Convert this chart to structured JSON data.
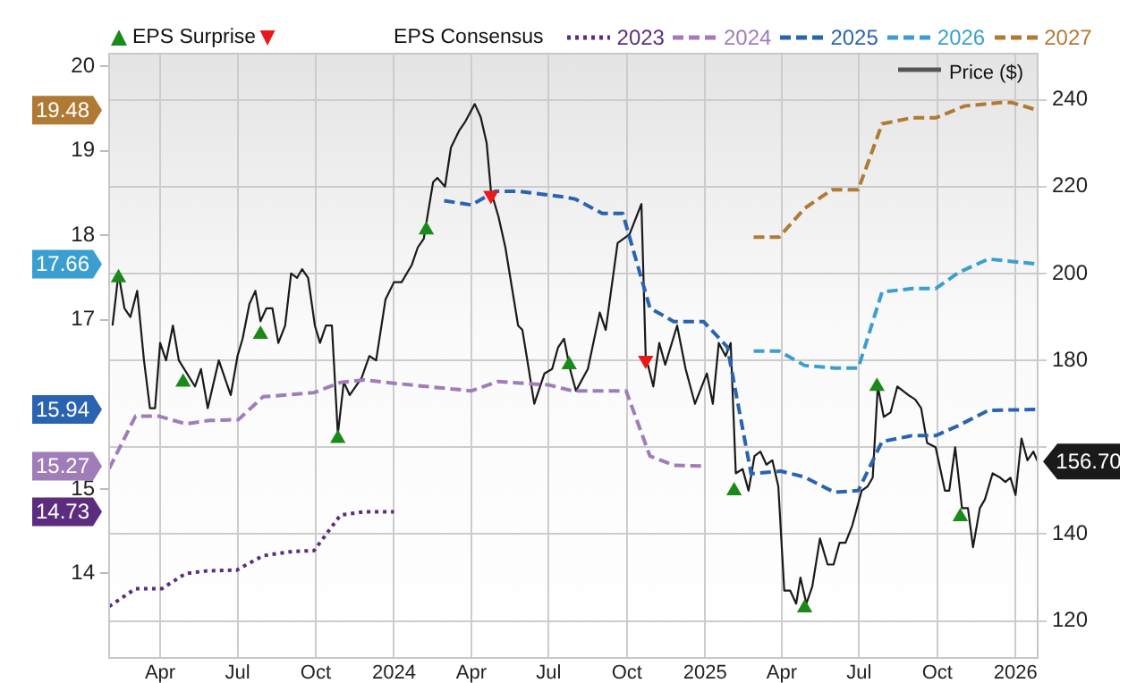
{
  "chart_data": {
    "type": "line",
    "legend": "top",
    "legend_title": "EPS Consensus",
    "grid": true,
    "xlim": [
      "2023-01-31",
      "2026-01-27"
    ],
    "xticks": [
      {
        "value": "2023-04-01",
        "label": "Apr"
      },
      {
        "value": "2023-07-01",
        "label": "Jul"
      },
      {
        "value": "2023-10-01",
        "label": "Oct"
      },
      {
        "value": "2024-01-01",
        "label": "2024"
      },
      {
        "value": "2024-04-01",
        "label": "Apr"
      },
      {
        "value": "2024-07-01",
        "label": "Jul"
      },
      {
        "value": "2024-10-01",
        "label": "Oct"
      },
      {
        "value": "2025-01-01",
        "label": "2025"
      },
      {
        "value": "2025-04-01",
        "label": "Apr"
      },
      {
        "value": "2025-07-01",
        "label": "Jul"
      },
      {
        "value": "2025-10-01",
        "label": "Oct"
      },
      {
        "value": "2026-01-01",
        "label": "2026"
      }
    ],
    "ylim": [
      13.0,
      20.15
    ],
    "yticks": [
      14,
      15,
      17,
      18,
      19,
      20
    ],
    "y2lim": [
      111.5,
      250.6
    ],
    "y2ticks": [
      120,
      140,
      {
        "value": 160,
        "label": null
      },
      180,
      200,
      220,
      240
    ],
    "annotations": [
      "14.73",
      "15.27",
      "15.94",
      "17.66",
      "19.48"
    ],
    "series": [
      {
        "name": "2023",
        "color": "#5c2d7e",
        "line_style": "dotted",
        "marker": "none",
        "x": [
          "2023-01-31",
          "2023-03-03",
          "2023-04-03",
          "2023-05-01",
          "2023-05-26",
          "2023-06-30",
          "2023-07-31",
          "2023-09-04",
          "2023-09-29",
          "2023-10-30",
          "2023-11-27",
          "2024-01-01"
        ],
        "values": [
          13.61,
          13.82,
          13.82,
          14.0,
          14.03,
          14.04,
          14.21,
          14.26,
          14.27,
          14.69,
          14.73,
          14.73
        ]
      },
      {
        "name": "2024",
        "color": "#a07cb8",
        "line_style": "dashed",
        "marker": "none",
        "x": [
          "2023-01-31",
          "2023-03-03",
          "2023-03-31",
          "2023-05-01",
          "2023-05-29",
          "2023-07-02",
          "2023-07-31",
          "2023-09-29",
          "2023-10-30",
          "2023-11-27",
          "2024-01-01",
          "2024-04-01",
          "2024-05-02",
          "2024-07-01",
          "2024-07-29",
          "2024-09-30",
          "2024-10-28",
          "2024-11-25",
          "2024-12-30"
        ],
        "values": [
          15.24,
          15.86,
          15.86,
          15.77,
          15.81,
          15.82,
          16.09,
          16.14,
          16.26,
          16.29,
          16.25,
          16.16,
          16.27,
          16.23,
          16.16,
          16.16,
          15.39,
          15.28,
          15.27
        ]
      },
      {
        "name": "2025",
        "color": "#2a64b0",
        "line_style": "dashed",
        "marker": "none",
        "x": [
          "2024-02-29",
          "2024-04-01",
          "2024-04-29",
          "2024-05-27",
          "2024-07-22",
          "2024-08-01",
          "2024-09-02",
          "2024-09-26",
          "2024-10-28",
          "2024-11-25",
          "2024-12-30",
          "2025-01-27",
          "2025-02-24",
          "2025-03-31",
          "2025-04-28",
          "2025-06-02",
          "2025-06-30",
          "2025-07-28",
          "2025-09-01",
          "2025-09-29",
          "2025-10-26",
          "2025-11-30",
          "2026-01-27"
        ],
        "values": [
          18.41,
          18.36,
          18.52,
          18.52,
          18.45,
          18.43,
          18.26,
          18.26,
          17.14,
          16.98,
          16.98,
          16.68,
          15.18,
          15.21,
          15.14,
          14.96,
          14.98,
          15.56,
          15.63,
          15.63,
          15.75,
          15.93,
          15.94
        ]
      },
      {
        "name": "2026",
        "color": "#3a9fd0",
        "line_style": "dashed",
        "marker": "none",
        "x": [
          "2025-02-27",
          "2025-03-29",
          "2025-04-28",
          "2025-06-02",
          "2025-06-30",
          "2025-07-28",
          "2025-09-01",
          "2025-09-29",
          "2025-10-26",
          "2025-11-30",
          "2026-01-27"
        ],
        "values": [
          16.63,
          16.63,
          16.46,
          16.43,
          16.43,
          17.33,
          17.37,
          17.37,
          17.56,
          17.72,
          17.66
        ]
      },
      {
        "name": "2027",
        "color": "#b07a35",
        "line_style": "dashed",
        "marker": "none",
        "x": [
          "2025-02-27",
          "2025-03-29",
          "2025-04-28",
          "2025-05-30",
          "2025-06-30",
          "2025-07-28",
          "2025-09-01",
          "2025-09-29",
          "2025-11-02",
          "2025-12-14",
          "2025-12-28",
          "2026-01-27"
        ],
        "values": [
          17.98,
          17.98,
          18.32,
          18.54,
          18.54,
          19.32,
          19.39,
          19.39,
          19.53,
          19.57,
          19.57,
          19.48
        ]
      },
      {
        "name": "Price ($)",
        "axis": "y2",
        "color": "#1a1a1a",
        "line_style": "solid",
        "marker": "none",
        "x": [
          "2023-02-04",
          "2023-02-11",
          "2023-02-18",
          "2023-02-25",
          "2023-03-05",
          "2023-03-13",
          "2023-03-20",
          "2023-03-26",
          "2023-04-01",
          "2023-04-08",
          "2023-04-16",
          "2023-04-23",
          "2023-05-12",
          "2023-05-19",
          "2023-05-27",
          "2023-06-09",
          "2023-06-23",
          "2023-07-01",
          "2023-07-07",
          "2023-07-15",
          "2023-07-22",
          "2023-07-28",
          "2023-08-04",
          "2023-08-11",
          "2023-08-18",
          "2023-08-26",
          "2023-09-02",
          "2023-09-09",
          "2023-09-15",
          "2023-09-22",
          "2023-09-30",
          "2023-10-06",
          "2023-10-13",
          "2023-10-20",
          "2023-10-27",
          "2023-11-03",
          "2023-11-10",
          "2023-11-24",
          "2023-12-03",
          "2023-12-11",
          "2023-12-22",
          "2024-01-01",
          "2024-01-10",
          "2024-01-22",
          "2024-01-29",
          "2024-02-05",
          "2024-02-16",
          "2024-02-21",
          "2024-03-01",
          "2024-03-08",
          "2024-03-18",
          "2024-03-25",
          "2024-04-05",
          "2024-04-12",
          "2024-04-19",
          "2024-04-24",
          "2024-05-03",
          "2024-05-11",
          "2024-05-26",
          "2024-05-31",
          "2024-06-05",
          "2024-06-14",
          "2024-06-26",
          "2024-07-05",
          "2024-07-12",
          "2024-07-19",
          "2024-07-26",
          "2024-08-02",
          "2024-08-16",
          "2024-08-30",
          "2024-09-06",
          "2024-09-20",
          "2024-10-04",
          "2024-10-18",
          "2024-10-23",
          "2024-11-01",
          "2024-11-08",
          "2024-11-15",
          "2024-11-29",
          "2024-12-09",
          "2024-12-20",
          "2025-01-03",
          "2025-01-10",
          "2025-01-17",
          "2025-01-25",
          "2025-01-31",
          "2025-02-06",
          "2025-02-14",
          "2025-02-21",
          "2025-02-28",
          "2025-03-07",
          "2025-03-14",
          "2025-03-21",
          "2025-03-28",
          "2025-04-04",
          "2025-04-11",
          "2025-04-18",
          "2025-04-23",
          "2025-04-30",
          "2025-05-07",
          "2025-05-16",
          "2025-05-25",
          "2025-06-01",
          "2025-06-08",
          "2025-06-15",
          "2025-06-23",
          "2025-07-04",
          "2025-07-11",
          "2025-07-17",
          "2025-07-23",
          "2025-07-30",
          "2025-08-07",
          "2025-08-15",
          "2025-08-28",
          "2025-09-05",
          "2025-09-12",
          "2025-09-19",
          "2025-09-29",
          "2025-10-10",
          "2025-10-15",
          "2025-10-22",
          "2025-10-30",
          "2025-11-06",
          "2025-11-12",
          "2025-11-20",
          "2025-11-26",
          "2025-12-05",
          "2025-12-14",
          "2025-12-20",
          "2025-12-26",
          "2026-01-01",
          "2026-01-08",
          "2026-01-15",
          "2026-01-22",
          "2026-01-27"
        ],
        "values": [
          188,
          200,
          192,
          190,
          196,
          180,
          169,
          169,
          184,
          180,
          188,
          180,
          174,
          178,
          169,
          180,
          172,
          181,
          185,
          193,
          196,
          189,
          192,
          192,
          184,
          188,
          200,
          199,
          201,
          199,
          188,
          184,
          188,
          188,
          163,
          175,
          172,
          176,
          181,
          180,
          194,
          198,
          198,
          202,
          206,
          208,
          221,
          222,
          220,
          229,
          233,
          235,
          239,
          236,
          230,
          219,
          213,
          206,
          188,
          187,
          181,
          170,
          177,
          178,
          183,
          185,
          178,
          173,
          178,
          191,
          187,
          207,
          209,
          216,
          181,
          174,
          184,
          179,
          188,
          178,
          170,
          177,
          170,
          184,
          181,
          184,
          154,
          155,
          150,
          158,
          159,
          156,
          157,
          151,
          127,
          127,
          124,
          130,
          124,
          128,
          139,
          133,
          133,
          138,
          138,
          142,
          150,
          151,
          153,
          174,
          167,
          168,
          174,
          172,
          171,
          169,
          161,
          160,
          150,
          150,
          160,
          146,
          146,
          137,
          146,
          148,
          154,
          153,
          152,
          153,
          149,
          162,
          157,
          159,
          156.7
        ],
        "value_labels": [
          null,
          null,
          null,
          null,
          null,
          null,
          null,
          null,
          null,
          null,
          null,
          null,
          null,
          null,
          null,
          null,
          null,
          null,
          null,
          null,
          null,
          null,
          null,
          null,
          null,
          null,
          null,
          null,
          null,
          null,
          null,
          null,
          null,
          null,
          null,
          null,
          null,
          null,
          null,
          null,
          null,
          null,
          null,
          null,
          null,
          null,
          null,
          null,
          null,
          null,
          null,
          null,
          null,
          null,
          null,
          null,
          null,
          null,
          null,
          null,
          null,
          null,
          null,
          null,
          null,
          null,
          null,
          null,
          null,
          null,
          null,
          null,
          null,
          null,
          null,
          null,
          null,
          null,
          null,
          null,
          null,
          null,
          null,
          null,
          null,
          null,
          null,
          null,
          null,
          null,
          null,
          null,
          null,
          null,
          null,
          null,
          null,
          null,
          null,
          null,
          null,
          null,
          null,
          null,
          null,
          null,
          null,
          null,
          null,
          null,
          null,
          null,
          null,
          null,
          null,
          null,
          null,
          null,
          null,
          null,
          null,
          null,
          null,
          null,
          null,
          null,
          null,
          null,
          null,
          null,
          null,
          null,
          null,
          null,
          "156.70"
        ]
      },
      {
        "name": "EPS Surprise",
        "type": "scatter",
        "axis": "y2",
        "color": "#1a8a1a",
        "marker": "triangle",
        "x": [
          "2023-02-11",
          "2023-04-28",
          "2023-07-28",
          "2023-10-27",
          "2024-02-08",
          "2024-07-25",
          "2025-02-04",
          "2025-04-28",
          "2025-07-22",
          "2025-10-28"
        ],
        "values": [
          199,
          175,
          186,
          162,
          210,
          179,
          150,
          123,
          174,
          144
        ]
      },
      {
        "type": "scatter",
        "axis": "y2",
        "color": "#e8191b",
        "marker": "triangle",
        "x": [
          "2024-04-24",
          "2024-10-23"
        ],
        "values": [
          218,
          180
        ]
      }
    ]
  }
}
